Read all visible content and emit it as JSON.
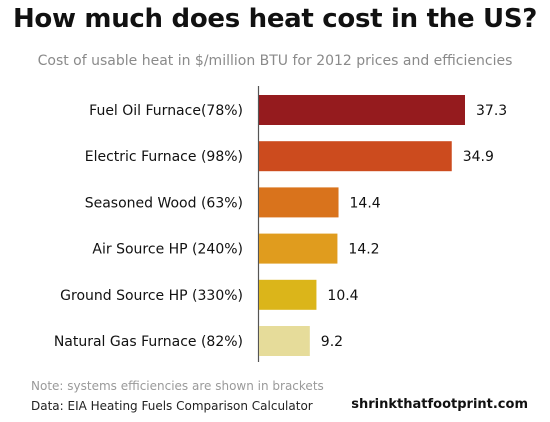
{
  "chart_data": {
    "type": "bar",
    "orientation": "horizontal",
    "title": "How much does heat cost in the US?",
    "subtitle": "Cost of usable heat in $/million BTU for 2012 prices and efficiencies",
    "categories": [
      "Fuel Oil Furnace(78%)",
      "Electric Furnace (98%)",
      "Seasoned Wood (63%)",
      "Air Source HP (240%)",
      "Ground Source HP (330%)",
      "Natural Gas Furnace (82%)"
    ],
    "values": [
      37.3,
      34.9,
      14.4,
      14.2,
      10.4,
      9.2
    ],
    "value_labels": [
      "37.3",
      "34.9",
      "14.4",
      "14.2",
      "10.4",
      "9.2"
    ],
    "colors": [
      "#951b1e",
      "#cc4b1e",
      "#d9731c",
      "#e09c1e",
      "#dbb51a",
      "#e6dc9a"
    ],
    "xlim": [
      0,
      37.3
    ],
    "grid": false,
    "legend": "none"
  },
  "footer": {
    "note": "Note: systems efficiencies are shown in brackets",
    "source": "Data: EIA Heating Fuels Comparison Calculator",
    "brand": "shrinkthatfootprint.com"
  }
}
